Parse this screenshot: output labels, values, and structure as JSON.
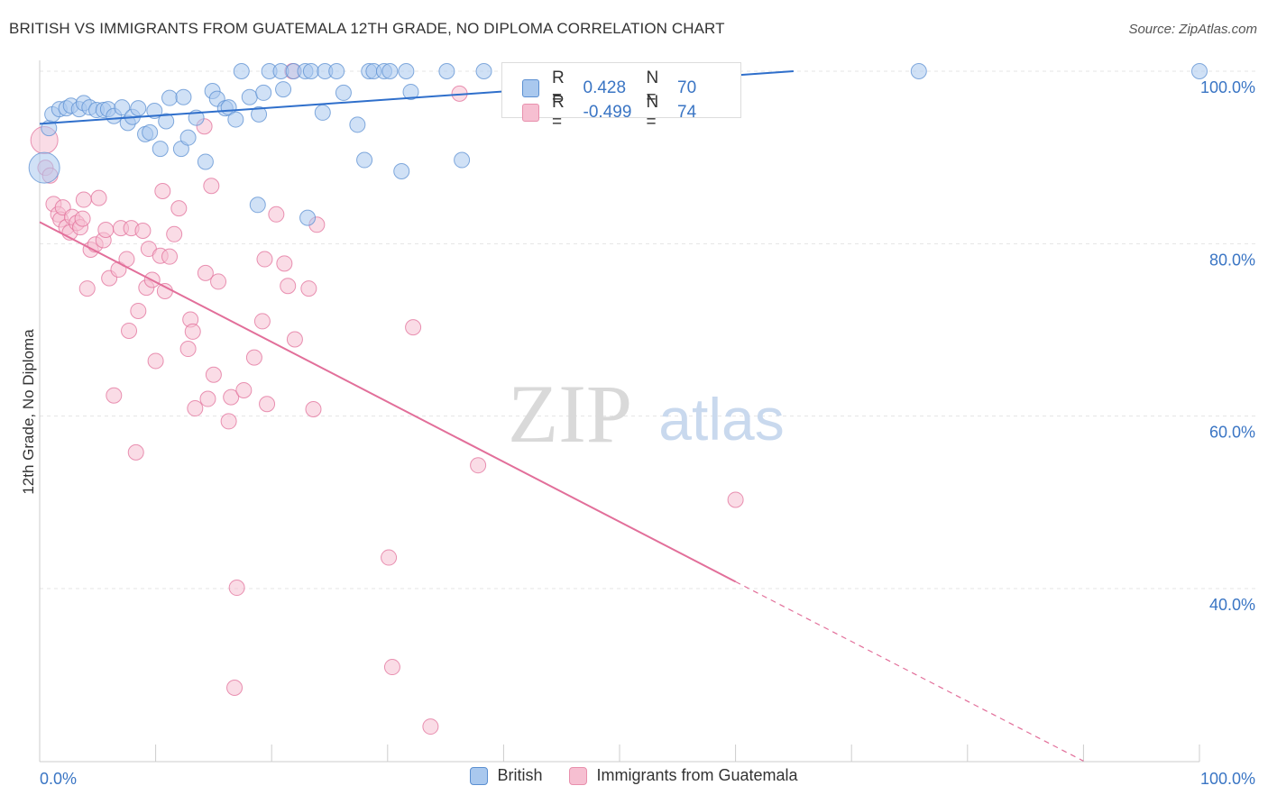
{
  "header": {
    "title": "BRITISH VS IMMIGRANTS FROM GUATEMALA 12TH GRADE, NO DIPLOMA CORRELATION CHART",
    "source": "Source: ZipAtlas.com"
  },
  "watermark": {
    "zip": "ZIP",
    "atlas": "atlas"
  },
  "stats": [
    {
      "r_label": "R =",
      "r_value": "0.428",
      "n_label": "N =",
      "n_value": "70",
      "fill": "#a9c8ee",
      "stroke": "#5b8fd1"
    },
    {
      "r_label": "R =",
      "r_value": "-0.499",
      "n_label": "N =",
      "n_value": "74",
      "fill": "#f6bfd1",
      "stroke": "#e890ad"
    }
  ],
  "legend": [
    {
      "label": "British",
      "fill": "#a9c8ee",
      "stroke": "#5b8fd1"
    },
    {
      "label": "Immigrants from Guatemala",
      "fill": "#f6bfd1",
      "stroke": "#e890ad"
    }
  ],
  "chart_data": {
    "type": "scatter",
    "title": "BRITISH VS IMMIGRANTS FROM GUATEMALA 12TH GRADE, NO DIPLOMA CORRELATION CHART",
    "xlabel": "",
    "ylabel": "12th Grade, No Diploma",
    "xlim": [
      0,
      100
    ],
    "ylim": [
      20,
      103
    ],
    "x_tick_labels": [
      "0.0%",
      "100.0%"
    ],
    "y_ticks": [
      40,
      60,
      80,
      100
    ],
    "y_tick_labels": [
      "40.0%",
      "60.0%",
      "80.0%",
      "100.0%"
    ],
    "grid": true,
    "legend_position": "bottom-center",
    "series": [
      {
        "name": "British",
        "color": "#5b8fd1",
        "fill": "#a9c8ee",
        "trend": {
          "x": [
            0,
            65
          ],
          "y": [
            93.9,
            100
          ]
        },
        "points": [
          [
            0.4,
            88.8
          ],
          [
            0.8,
            93.4
          ],
          [
            1.1,
            95.0
          ],
          [
            1.7,
            95.6
          ],
          [
            2.3,
            95.7
          ],
          [
            2.7,
            96.0
          ],
          [
            3.4,
            95.6
          ],
          [
            3.8,
            96.3
          ],
          [
            4.3,
            95.8
          ],
          [
            4.9,
            95.5
          ],
          [
            5.5,
            95.5
          ],
          [
            5.9,
            95.6
          ],
          [
            6.4,
            94.8
          ],
          [
            7.1,
            95.8
          ],
          [
            7.6,
            94.0
          ],
          [
            8.0,
            94.7
          ],
          [
            8.5,
            95.7
          ],
          [
            9.1,
            92.7
          ],
          [
            9.5,
            92.9
          ],
          [
            9.9,
            95.4
          ],
          [
            10.4,
            91.0
          ],
          [
            10.9,
            94.2
          ],
          [
            11.2,
            96.9
          ],
          [
            12.2,
            91.0
          ],
          [
            12.4,
            97.0
          ],
          [
            12.8,
            92.3
          ],
          [
            13.5,
            94.6
          ],
          [
            14.3,
            89.5
          ],
          [
            14.9,
            97.7
          ],
          [
            15.3,
            96.8
          ],
          [
            16.0,
            95.7
          ],
          [
            16.3,
            95.8
          ],
          [
            16.9,
            94.4
          ],
          [
            17.4,
            100
          ],
          [
            18.1,
            97.0
          ],
          [
            18.8,
            84.5
          ],
          [
            18.9,
            95.0
          ],
          [
            19.3,
            97.5
          ],
          [
            19.8,
            100
          ],
          [
            20.8,
            100
          ],
          [
            21.0,
            97.9
          ],
          [
            21.9,
            100
          ],
          [
            22.9,
            100
          ],
          [
            23.1,
            83.0
          ],
          [
            23.4,
            100
          ],
          [
            24.4,
            95.2
          ],
          [
            24.6,
            100
          ],
          [
            25.6,
            100
          ],
          [
            26.2,
            97.5
          ],
          [
            27.4,
            93.8
          ],
          [
            28.0,
            89.7
          ],
          [
            28.4,
            100
          ],
          [
            28.8,
            100
          ],
          [
            29.7,
            100
          ],
          [
            30.2,
            100
          ],
          [
            31.2,
            88.4
          ],
          [
            31.6,
            100
          ],
          [
            32.0,
            97.6
          ],
          [
            35.1,
            100
          ],
          [
            36.4,
            89.7
          ],
          [
            38.3,
            100
          ],
          [
            41.0,
            100
          ],
          [
            45.4,
            100
          ],
          [
            46.6,
            100
          ],
          [
            47.3,
            100
          ],
          [
            48.0,
            100
          ],
          [
            50.3,
            100
          ],
          [
            51.7,
            100
          ],
          [
            75.8,
            100
          ],
          [
            100,
            100
          ]
        ]
      },
      {
        "name": "Immigrants from Guatemala",
        "color": "#e26f9a",
        "fill": "#f6bfd1",
        "trend": {
          "x": [
            0,
            60
          ],
          "y": [
            82.5,
            40.8
          ]
        },
        "trend_extension": {
          "x": [
            60,
            90
          ],
          "y": [
            40.8,
            20
          ]
        },
        "points": [
          [
            0.4,
            92.0
          ],
          [
            0.5,
            88.8
          ],
          [
            0.9,
            87.9
          ],
          [
            1.2,
            84.6
          ],
          [
            1.6,
            83.4
          ],
          [
            1.8,
            82.8
          ],
          [
            2.0,
            84.2
          ],
          [
            2.3,
            81.9
          ],
          [
            2.6,
            81.3
          ],
          [
            2.8,
            83.1
          ],
          [
            3.2,
            82.4
          ],
          [
            3.5,
            81.9
          ],
          [
            3.7,
            82.9
          ],
          [
            3.8,
            85.1
          ],
          [
            4.1,
            74.8
          ],
          [
            4.4,
            79.3
          ],
          [
            4.8,
            79.9
          ],
          [
            5.1,
            85.3
          ],
          [
            5.5,
            80.4
          ],
          [
            5.7,
            81.6
          ],
          [
            6.0,
            76.0
          ],
          [
            6.4,
            62.4
          ],
          [
            6.8,
            77.0
          ],
          [
            7.0,
            81.8
          ],
          [
            7.5,
            78.2
          ],
          [
            7.7,
            69.9
          ],
          [
            7.9,
            81.8
          ],
          [
            8.3,
            55.8
          ],
          [
            8.5,
            72.2
          ],
          [
            8.9,
            81.5
          ],
          [
            9.2,
            74.9
          ],
          [
            9.4,
            79.4
          ],
          [
            9.7,
            75.8
          ],
          [
            10.0,
            66.4
          ],
          [
            10.4,
            78.6
          ],
          [
            10.6,
            86.1
          ],
          [
            10.8,
            74.5
          ],
          [
            11.2,
            78.5
          ],
          [
            11.6,
            81.1
          ],
          [
            12.0,
            84.1
          ],
          [
            12.8,
            67.8
          ],
          [
            13.0,
            71.2
          ],
          [
            13.2,
            69.8
          ],
          [
            13.4,
            60.9
          ],
          [
            14.2,
            93.6
          ],
          [
            14.3,
            76.6
          ],
          [
            14.5,
            62.0
          ],
          [
            14.8,
            86.7
          ],
          [
            15.0,
            64.8
          ],
          [
            15.4,
            75.6
          ],
          [
            16.3,
            59.4
          ],
          [
            16.5,
            62.2
          ],
          [
            16.8,
            28.5
          ],
          [
            17.0,
            40.1
          ],
          [
            17.6,
            63.0
          ],
          [
            18.5,
            66.8
          ],
          [
            19.2,
            71.0
          ],
          [
            19.4,
            78.2
          ],
          [
            19.6,
            61.4
          ],
          [
            20.4,
            83.4
          ],
          [
            21.1,
            77.7
          ],
          [
            21.4,
            75.1
          ],
          [
            21.8,
            100
          ],
          [
            22.0,
            68.9
          ],
          [
            23.2,
            74.8
          ],
          [
            23.6,
            60.8
          ],
          [
            23.9,
            82.2
          ],
          [
            30.1,
            43.6
          ],
          [
            30.4,
            30.9
          ],
          [
            32.2,
            70.3
          ],
          [
            33.7,
            24.0
          ],
          [
            36.2,
            97.4
          ],
          [
            37.8,
            54.3
          ],
          [
            60.0,
            50.3
          ]
        ]
      }
    ]
  }
}
